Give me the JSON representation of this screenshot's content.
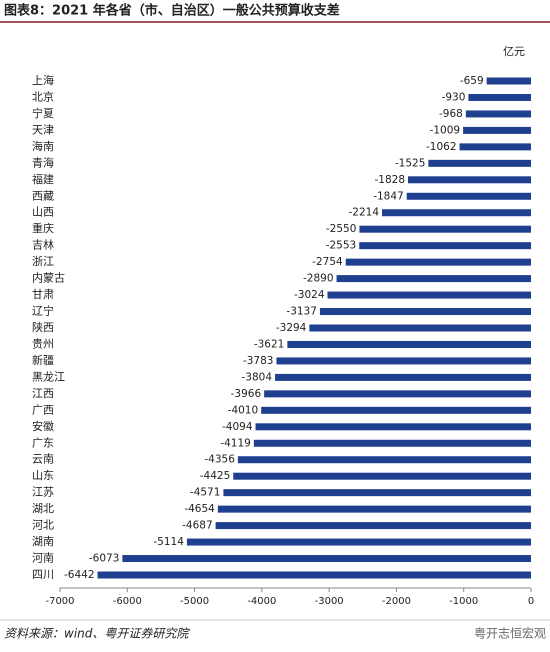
{
  "chart_data": {
    "type": "hbar",
    "title": "图表8：2021 年各省（市、自治区）一般公共预算收支差",
    "unit": "亿元",
    "categories": [
      "上海",
      "北京",
      "宁夏",
      "天津",
      "海南",
      "青海",
      "福建",
      "西藏",
      "山西",
      "重庆",
      "吉林",
      "浙江",
      "内蒙古",
      "甘肃",
      "辽宁",
      "陕西",
      "贵州",
      "新疆",
      "黑龙江",
      "江西",
      "广西",
      "安徽",
      "广东",
      "云南",
      "山东",
      "江苏",
      "湖北",
      "河北",
      "湖南",
      "河南",
      "四川"
    ],
    "values": [
      -659,
      -930,
      -968,
      -1009,
      -1062,
      -1525,
      -1828,
      -1847,
      -2214,
      -2550,
      -2553,
      -2754,
      -2890,
      -3024,
      -3137,
      -3294,
      -3621,
      -3783,
      -3804,
      -3966,
      -4010,
      -4094,
      -4119,
      -4356,
      -4425,
      -4571,
      -4654,
      -4687,
      -5114,
      -6073,
      -6442
    ],
    "color": "#1f3f8f",
    "xlim": [
      -7000,
      0
    ],
    "xticks": [
      -7000,
      -6000,
      -5000,
      -4000,
      -3000,
      -2000,
      -1000,
      0
    ],
    "source": "资料来源：wind、粤开证券研究院",
    "watermark": "粤开志恒宏观"
  }
}
